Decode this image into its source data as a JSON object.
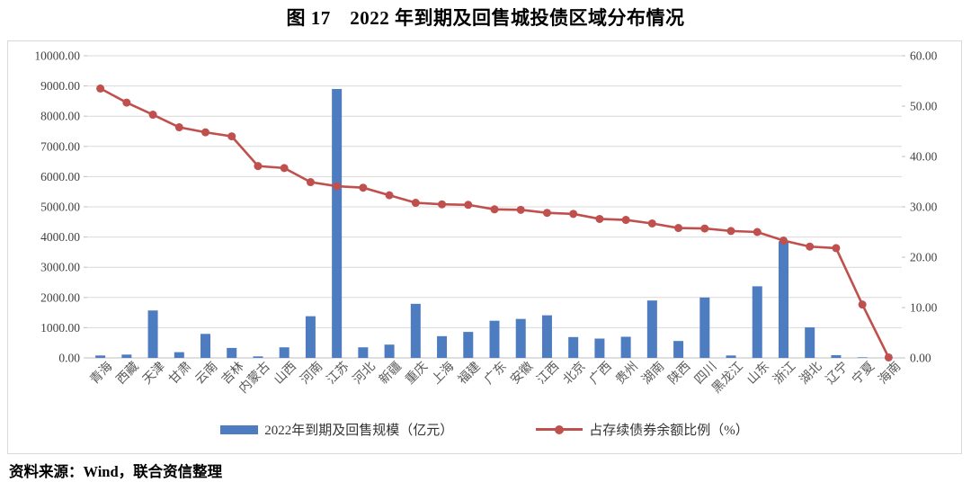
{
  "title": "图 17　2022 年到期及回售城投债区域分布情况",
  "source": "资料来源：Wind，联合资信整理",
  "colors": {
    "bar": "#4E7CC0",
    "line": "#C0504D",
    "grid": "#D9D9D9",
    "axis_line": "#BFBFBF",
    "axis_text": "#404040",
    "x_label_text": "#595959",
    "border": "#D9D9D9"
  },
  "legend": [
    {
      "label": "2022年到期及回售规模（亿元）",
      "type": "bar"
    },
    {
      "label": "占存续债券余额比例（%）",
      "type": "line"
    }
  ],
  "chart_data": {
    "type": "bar",
    "subtype": "bar-line-combo-dual-axis",
    "title": "图 17　2022 年到期及回售城投债区域分布情况",
    "categories": [
      "青海",
      "西藏",
      "天津",
      "甘肃",
      "云南",
      "吉林",
      "内蒙古",
      "山西",
      "河南",
      "江苏",
      "河北",
      "新疆",
      "重庆",
      "上海",
      "福建",
      "广东",
      "安徽",
      "江西",
      "北京",
      "广西",
      "贵州",
      "湖南",
      "陕西",
      "四川",
      "黑龙江",
      "山东",
      "浙江",
      "湖北",
      "辽宁",
      "宁夏",
      "海南"
    ],
    "series": [
      {
        "name": "2022年到期及回售规模（亿元）",
        "type": "bar",
        "axis": "left",
        "values": [
          80,
          110,
          1570,
          190,
          795,
          330,
          50,
          350,
          1380,
          8900,
          350,
          440,
          1790,
          720,
          860,
          1230,
          1290,
          1410,
          690,
          640,
          700,
          1900,
          560,
          2000,
          80,
          2370,
          3860,
          1010,
          90,
          20,
          5
        ]
      },
      {
        "name": "占存续债券余额比例（%）",
        "type": "line",
        "axis": "right",
        "values": [
          53.5,
          50.7,
          48.3,
          45.8,
          44.8,
          44.0,
          38.1,
          37.7,
          34.9,
          34.1,
          33.8,
          32.3,
          30.8,
          30.5,
          30.4,
          29.5,
          29.4,
          28.8,
          28.6,
          27.6,
          27.4,
          26.7,
          25.8,
          25.7,
          25.2,
          25.0,
          23.3,
          22.1,
          21.8,
          10.6,
          0.1
        ]
      }
    ],
    "left_axis": {
      "min": 0,
      "max": 10000,
      "step": 1000,
      "label_format": "0.00"
    },
    "right_axis": {
      "min": 0,
      "max": 60,
      "step": 10,
      "label_format": "0.00"
    },
    "grid": "horizontal",
    "legend_position": "bottom",
    "x_label_rotation": -45
  }
}
